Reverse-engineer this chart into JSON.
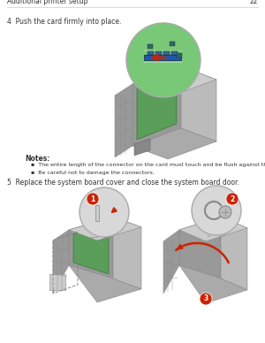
{
  "background_color": "#ffffff",
  "header_text": "Additional printer setup",
  "header_page": "22",
  "header_line_color": "#cccccc",
  "step4_text": "4  Push the card firmly into place.",
  "notes_title": "Notes:",
  "note1": "The entire length of the connector on the card must touch and be flush against the system board.",
  "note2": "Be careful not to damage the connectors.",
  "step5_text": "5  Replace the system board cover and close the system board door.",
  "text_color": "#333333",
  "text_fontsize": 5.5,
  "notes_fontsize": 5.5,
  "header_fontsize": 5.5,
  "red_color": "#cc2200",
  "gray1": "#aaaaaa",
  "gray2": "#999999",
  "gray3": "#bbbbbb",
  "gray4": "#cccccc",
  "gray5": "#888888",
  "green_board": "#5a9e5a",
  "green_zoom": "#78c878",
  "blue_card": "#2255aa"
}
